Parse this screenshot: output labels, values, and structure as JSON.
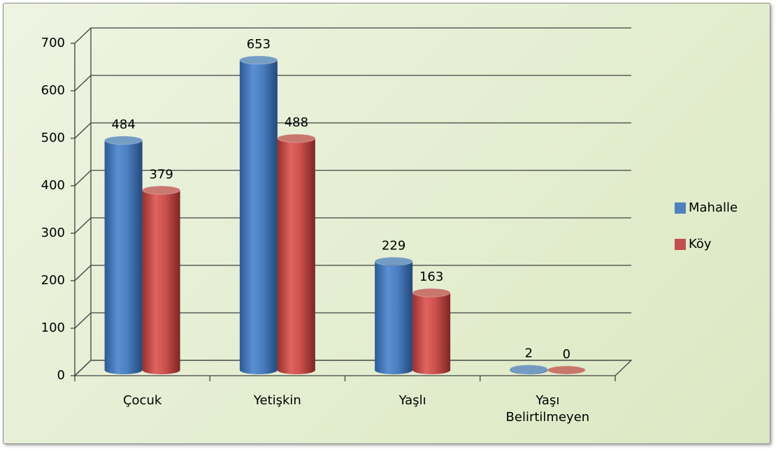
{
  "chart_data": {
    "type": "bar3d",
    "categories": [
      "Çocuk",
      "Yetişkin",
      "Yaşlı",
      "Yaşı Belirtilmeyen"
    ],
    "series": [
      {
        "name": "Mahalle",
        "color": "#4f81bd",
        "values": [
          484,
          653,
          229,
          2
        ]
      },
      {
        "name": "Köy",
        "color": "#c0504d",
        "values": [
          379,
          488,
          163,
          0
        ]
      }
    ],
    "ylim": [
      0,
      700
    ],
    "yticks": [
      0,
      100,
      200,
      300,
      400,
      500,
      600,
      700
    ],
    "grid": true,
    "legend": "right"
  }
}
